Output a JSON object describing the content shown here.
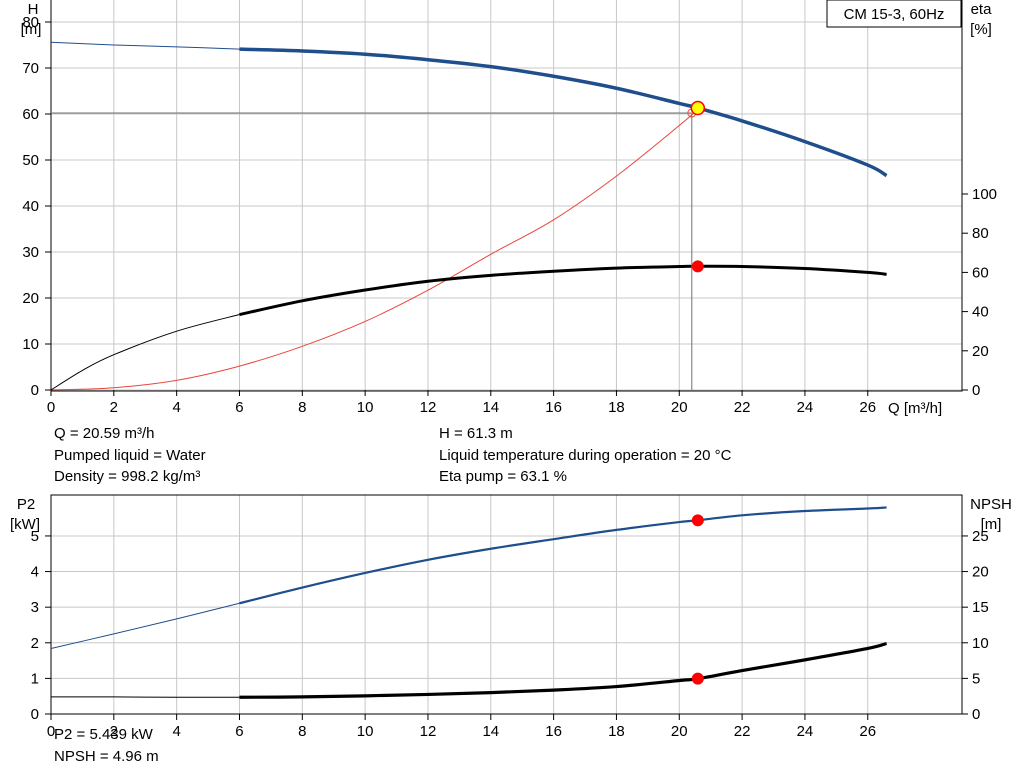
{
  "colors": {
    "head_curve": "#1f4e8c",
    "efficiency_curve": "#000000",
    "system_curve": "#e8463c",
    "grid": "#c8c8c8",
    "operating_point": "#ff0000",
    "duty_point_fill": "#ffff00",
    "duty_point_stroke": "#ff0000",
    "p2_curve": "#1f4e8c",
    "npsh_curve": "#000000"
  },
  "chart_data": [
    {
      "type": "line",
      "name": "pump-curve",
      "title": "CM 15-3, 60Hz",
      "xlabel": "Q [m³/h]",
      "ylabel_left": [
        "H",
        "[m]"
      ],
      "ylabel_right": [
        "eta",
        "[%]"
      ],
      "xlim": [
        0,
        29
      ],
      "ylim_left": [
        0,
        85
      ],
      "ylim_right": [
        0,
        100
      ],
      "right_axis_offset_data": 0,
      "xticks": [
        0,
        2,
        4,
        6,
        8,
        10,
        12,
        14,
        16,
        18,
        20,
        22,
        24,
        26
      ],
      "yticks_left": [
        0,
        10,
        20,
        30,
        40,
        50,
        60,
        70,
        80
      ],
      "yticks_right": [
        0,
        20,
        40,
        60,
        80,
        100
      ],
      "grid": true,
      "series": [
        {
          "role": "head",
          "thin_range": [
            0,
            6
          ],
          "x": [
            0,
            2,
            4,
            6,
            8,
            10,
            12,
            14,
            16,
            18,
            20,
            20.59,
            22,
            24,
            26,
            26.6
          ],
          "y": [
            75.6,
            75.0,
            74.6,
            74.1,
            73.7,
            73.0,
            71.8,
            70.3,
            68.2,
            65.6,
            62.3,
            61.3,
            58.5,
            54.0,
            48.9,
            46.6
          ]
        },
        {
          "role": "efficiency",
          "axis": "right",
          "thin_range": [
            0,
            6
          ],
          "x": [
            0,
            1,
            2,
            4,
            6,
            8,
            10,
            12,
            14,
            16,
            18,
            20,
            20.59,
            22,
            24,
            26,
            26.6
          ],
          "y": [
            0,
            10,
            18,
            30,
            38.5,
            45.5,
            51,
            55.5,
            58.5,
            60.6,
            62.2,
            63.0,
            63.1,
            63.0,
            62.0,
            60.0,
            59.0
          ]
        },
        {
          "role": "system",
          "x": [
            0,
            2,
            4,
            6,
            8,
            10,
            12,
            14,
            16,
            18,
            20,
            20.59
          ],
          "y": [
            0,
            0.5,
            2.1,
            5.2,
            9.5,
            14.9,
            21.7,
            29.5,
            37.0,
            46.5,
            57.5,
            61.0
          ]
        }
      ],
      "duty_point": {
        "x": 20.59,
        "y": 61.3
      },
      "operating_point_efficiency": {
        "x": 20.59,
        "y": 63.1
      }
    },
    {
      "type": "line",
      "name": "power-npsh",
      "ylabel_left": [
        "P2",
        "[kW]"
      ],
      "ylabel_right": [
        "NPSH",
        "[m]"
      ],
      "xlim": [
        0,
        29
      ],
      "ylim_left": [
        0,
        6.15
      ],
      "ylim_right": [
        0,
        30.75
      ],
      "xticks": [
        0,
        2,
        4,
        6,
        8,
        10,
        12,
        14,
        16,
        18,
        20,
        22,
        24,
        26
      ],
      "yticks_left": [
        0,
        1,
        2,
        3,
        4,
        5
      ],
      "yticks_right": [
        0,
        5,
        10,
        15,
        20,
        25
      ],
      "grid": true,
      "series": [
        {
          "role": "p2",
          "thin_range": [
            0,
            6
          ],
          "x": [
            0,
            2,
            4,
            6,
            8,
            10,
            12,
            14,
            16,
            18,
            20,
            20.59,
            22,
            24,
            26,
            26.6
          ],
          "y": [
            1.84,
            2.25,
            2.67,
            3.11,
            3.55,
            3.96,
            4.33,
            4.64,
            4.91,
            5.17,
            5.39,
            5.439,
            5.58,
            5.7,
            5.77,
            5.8
          ]
        },
        {
          "role": "npsh",
          "axis": "right",
          "thin_range": [
            0,
            6
          ],
          "x": [
            0,
            2,
            4,
            6,
            8,
            10,
            12,
            14,
            16,
            18,
            20,
            20.59,
            22,
            24,
            26,
            26.6
          ],
          "y": [
            2.4,
            2.4,
            2.35,
            2.35,
            2.4,
            2.55,
            2.75,
            3.0,
            3.35,
            3.85,
            4.7,
            4.96,
            6.1,
            7.6,
            9.2,
            9.9
          ]
        }
      ],
      "operating_point_p2": {
        "x": 20.59,
        "y": 5.439
      },
      "operating_point_npsh": {
        "x": 20.59,
        "y": 4.96
      }
    }
  ],
  "info": {
    "q": "Q = 20.59 m³/h",
    "liquid": "Pumped liquid = Water",
    "density": "Density = 998.2 kg/m³",
    "h": "H = 61.3 m",
    "temperature": "Liquid temperature during operation = 20 °C",
    "eta": "Eta pump = 63.1 %",
    "p2": "P2 = 5.439 kW",
    "npsh": "NPSH = 4.96 m"
  }
}
